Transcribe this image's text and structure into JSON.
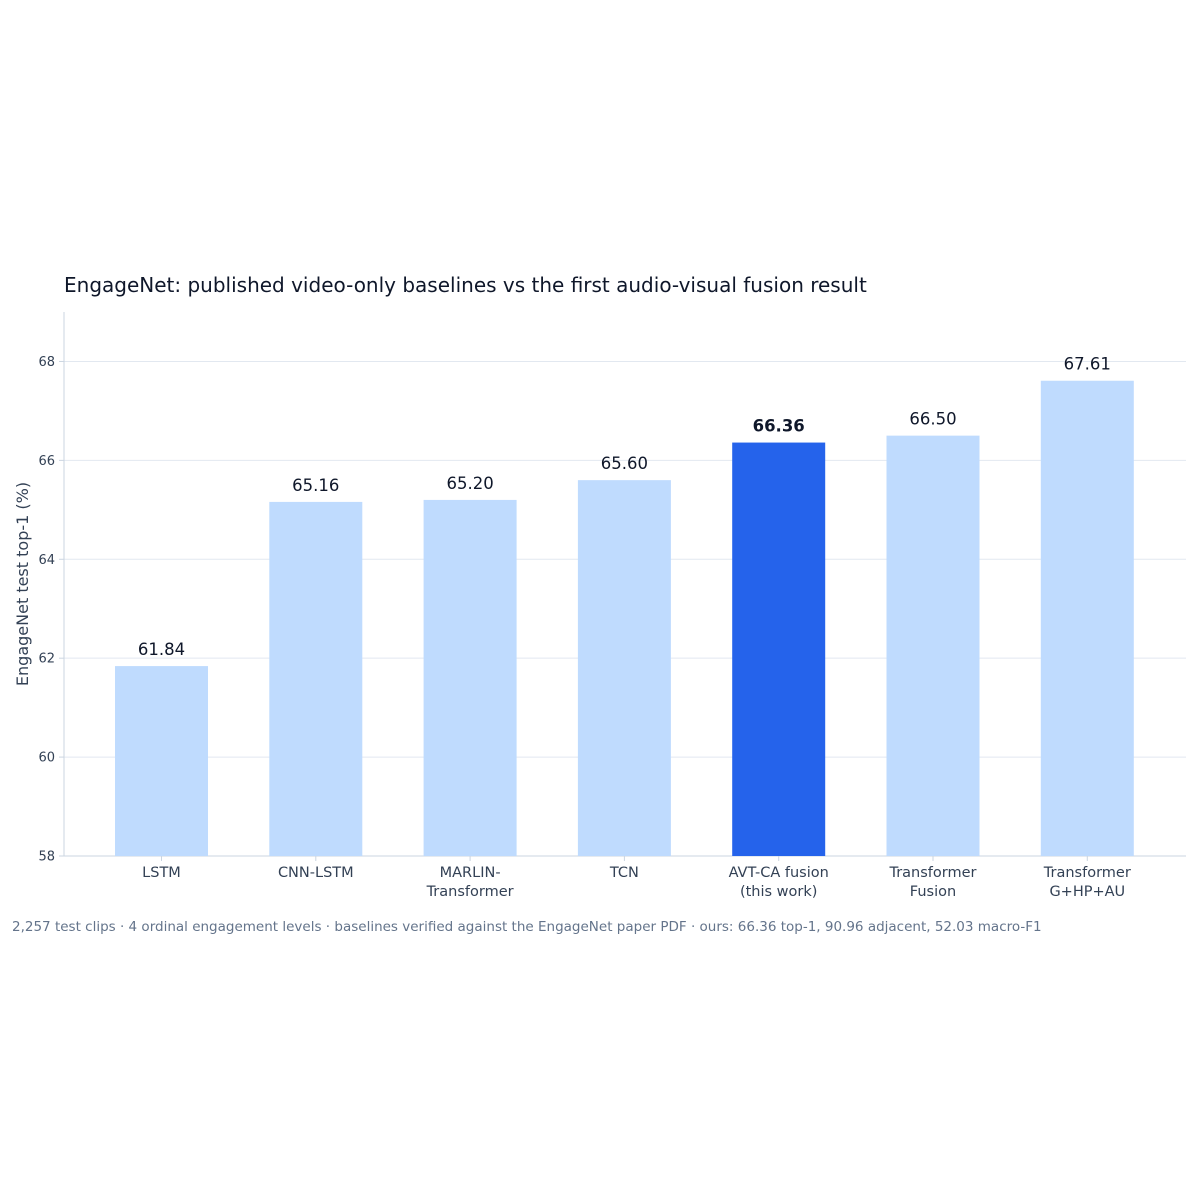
{
  "chart_data": {
    "type": "bar",
    "title": "EngageNet: published video-only baselines vs the first audio-visual fusion result",
    "xlabel": "",
    "ylabel": "EngageNet test top-1 (%)",
    "ylim": [
      58,
      69
    ],
    "yticks": [
      58,
      60,
      62,
      64,
      66,
      68
    ],
    "grid": true,
    "categories": [
      [
        "LSTM"
      ],
      [
        "CNN-LSTM"
      ],
      [
        "MARLIN-",
        "Transformer"
      ],
      [
        "TCN"
      ],
      [
        "AVT-CA fusion",
        "(this work)"
      ],
      [
        "Transformer",
        "Fusion"
      ],
      [
        "Transformer",
        "G+HP+AU"
      ]
    ],
    "values": [
      61.84,
      65.16,
      65.2,
      65.6,
      66.36,
      66.5,
      67.61
    ],
    "value_labels": [
      "61.84",
      "65.16",
      "65.20",
      "65.60",
      "66.36",
      "66.50",
      "67.61"
    ],
    "highlight_index": 4,
    "colors": {
      "bar": "#bfdbfe",
      "highlight": "#2563eb"
    },
    "footnote": "2,257 test clips · 4 ordinal engagement levels · baselines verified against the EngageNet paper PDF · ours: 66.36 top-1, 90.96 adjacent, 52.03 macro-F1"
  }
}
